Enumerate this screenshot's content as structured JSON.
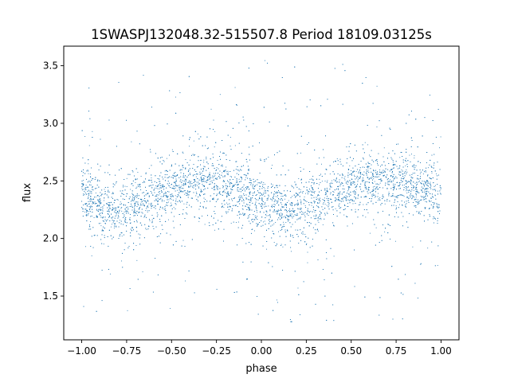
{
  "chart_data": {
    "type": "scatter",
    "title": "1SWASPJ132048.32-515507.8 Period 18109.03125s",
    "xlabel": "phase",
    "ylabel": "flux",
    "xlim": [
      -1.1,
      1.1
    ],
    "ylim": [
      1.12,
      3.67
    ],
    "x_ticks": [
      -1.0,
      -0.75,
      -0.5,
      -0.25,
      0.0,
      0.25,
      0.5,
      0.75,
      1.0
    ],
    "x_tick_labels": [
      "−1.00",
      "−0.75",
      "−0.50",
      "−0.25",
      "0.00",
      "0.25",
      "0.50",
      "0.75",
      "1.00"
    ],
    "y_ticks": [
      1.5,
      2.0,
      2.5,
      3.0,
      3.5
    ],
    "y_tick_labels": [
      "1.5",
      "2.0",
      "2.5",
      "3.0",
      "3.5"
    ],
    "grid": false,
    "marker_color": "#1f77b4",
    "series": [
      {
        "phase_range": [
          -1.0,
          1.0
        ],
        "trend_phase": [
          -1.0,
          -0.875,
          -0.75,
          -0.625,
          -0.5,
          -0.375,
          -0.25,
          -0.125,
          0.0,
          0.125,
          0.25,
          0.375,
          0.5,
          0.625,
          0.75,
          0.875,
          1.0
        ],
        "trend_flux": [
          2.37,
          2.27,
          2.25,
          2.32,
          2.42,
          2.49,
          2.48,
          2.42,
          2.32,
          2.25,
          2.28,
          2.38,
          2.45,
          2.5,
          2.49,
          2.43,
          2.37
        ],
        "core_scatter": 0.12,
        "outlier_flux_range": [
          1.25,
          3.55
        ]
      }
    ]
  }
}
